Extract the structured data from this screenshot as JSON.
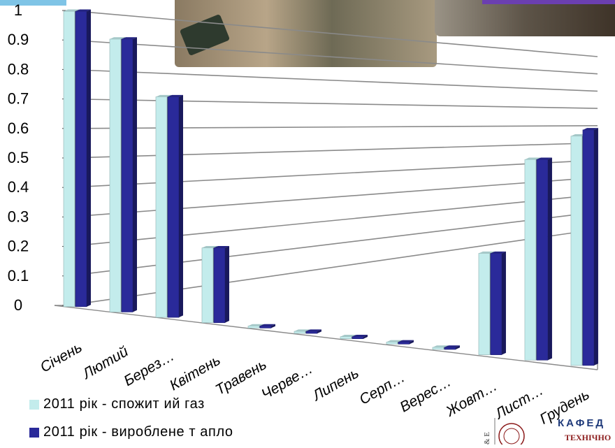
{
  "chart_data": {
    "type": "bar",
    "categories": [
      "Січень",
      "Лютий",
      "Берез…",
      "Квітень",
      "Травень",
      "Черве…",
      "Липень",
      "Серп…",
      "Верес…",
      "Жовт…",
      "Лист…",
      "Грудень"
    ],
    "series": [
      {
        "name": "2011 рік - спожит ий газ",
        "values": [
          1.0,
          0.92,
          0.74,
          0.25,
          0.0,
          0.0,
          0.0,
          0.0,
          0.0,
          0.33,
          0.65,
          0.74
        ],
        "color": "#c3ecec"
      },
      {
        "name": "2011 рік - вироблене т апло",
        "values": [
          1.0,
          0.92,
          0.74,
          0.25,
          0.0,
          0.0,
          0.0,
          0.0,
          0.0,
          0.33,
          0.65,
          0.76
        ],
        "color": "#2a2a9a"
      }
    ],
    "yticks": [
      "0",
      "0.1",
      "0.2",
      "0.3",
      "0.4",
      "0.5",
      "0.6",
      "0.7",
      "0.8",
      "0.9",
      "1"
    ],
    "ylim": [
      0,
      1
    ],
    "grid": true,
    "legend_position": "bottom-left"
  },
  "legend": [
    {
      "label": "2011 рік - спожит ий газ",
      "color": "#c3ecec"
    },
    {
      "label": "2011 рік - вироблене т апло",
      "color": "#2a2a9a"
    }
  ],
  "footer": {
    "logo_text": "КАФЕД",
    "logo_subtext": "ТЕХНІЧНО",
    "logo_initials": "& Е"
  },
  "photos": [
    "field-workers-photo",
    "field-equipment-photo"
  ],
  "colors": {
    "gridline": "#8a8a8a",
    "accent_logo": "#8b1a1a"
  }
}
